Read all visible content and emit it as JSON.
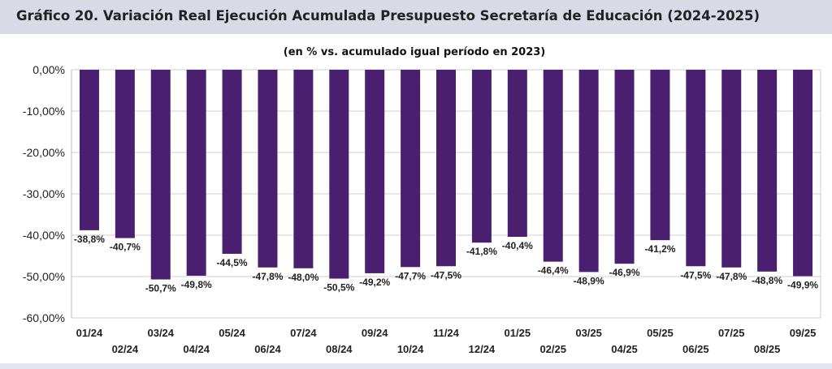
{
  "chart_data": {
    "type": "bar",
    "title": "Gráfico 20. Variación Real Ejecución Acumulada Presupuesto Secretaría de Educación (2024-2025)",
    "subtitle": "(en % vs. acumulado igual período en 2023)",
    "xlabel": "",
    "ylabel": "",
    "ylim": [
      -60,
      0
    ],
    "yticks": [
      0,
      -10,
      -20,
      -30,
      -40,
      -50,
      -60
    ],
    "ytick_labels": [
      "0,00%",
      "-10,00%",
      "-20,00%",
      "-30,00%",
      "-40,00%",
      "-50,00%",
      "-60,00%"
    ],
    "grid": true,
    "categories": [
      "01/24",
      "02/24",
      "03/24",
      "04/24",
      "05/24",
      "06/24",
      "07/24",
      "08/24",
      "09/24",
      "10/24",
      "11/24",
      "12/24",
      "01/25",
      "02/25",
      "03/25",
      "04/25",
      "05/25",
      "06/25",
      "07/25",
      "08/25",
      "09/25"
    ],
    "values": [
      -38.8,
      -40.7,
      -50.7,
      -49.8,
      -44.5,
      -47.8,
      -48.0,
      -50.5,
      -49.2,
      -47.7,
      -47.5,
      -41.8,
      -40.4,
      -46.4,
      -48.9,
      -46.9,
      -41.2,
      -47.5,
      -47.8,
      -48.8,
      -49.9
    ],
    "data_labels": [
      "-38,8%",
      "-40,7%",
      "-50,7%",
      "-49,8%",
      "-44,5%",
      "-47,8%",
      "-48,0%",
      "-50,5%",
      "-49,2%",
      "-47,7%",
      "-47,5%",
      "-41,8%",
      "-40,4%",
      "-46,4%",
      "-48,9%",
      "-46,9%",
      "-41,2%",
      "-47,5%",
      "-47,8%",
      "-48,8%",
      "-49,9%"
    ],
    "bar_color": "#4b1f6f",
    "legend": "none"
  }
}
